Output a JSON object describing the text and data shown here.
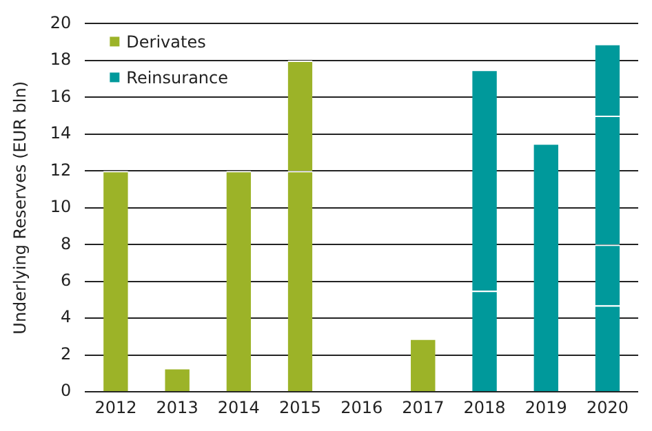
{
  "chart_data": {
    "type": "bar",
    "stacked": true,
    "ylabel": "Underlying Reserves (EUR bln)",
    "categories": [
      "2012",
      "2013",
      "2014",
      "2015",
      "2016",
      "2017",
      "2018",
      "2019",
      "2020"
    ],
    "series": [
      {
        "name": "Derivates",
        "color": "#9cb328",
        "values": [
          12,
          1.3,
          12,
          12,
          null,
          2.9,
          null,
          null,
          null
        ]
      },
      {
        "color": "#9cb328",
        "values": [
          null,
          null,
          null,
          6,
          null,
          null,
          null,
          null,
          null
        ]
      },
      {
        "name": "Reinsurance",
        "color": "#00999b",
        "values": [
          null,
          null,
          null,
          null,
          null,
          null,
          5.5,
          13.5,
          4.7
        ]
      },
      {
        "color": "#00999b",
        "values": [
          null,
          null,
          null,
          null,
          null,
          null,
          12,
          null,
          3.3
        ]
      },
      {
        "color": "#00999b",
        "values": [
          null,
          null,
          null,
          null,
          null,
          null,
          null,
          null,
          7
        ]
      },
      {
        "color": "#00999b",
        "values": [
          null,
          null,
          null,
          null,
          null,
          null,
          null,
          null,
          3.9
        ]
      }
    ],
    "ylim": [
      0,
      20
    ],
    "yticks": [
      0,
      2,
      4,
      6,
      8,
      10,
      12,
      14,
      16,
      18,
      20
    ],
    "grid": "y",
    "legend": "top left"
  }
}
